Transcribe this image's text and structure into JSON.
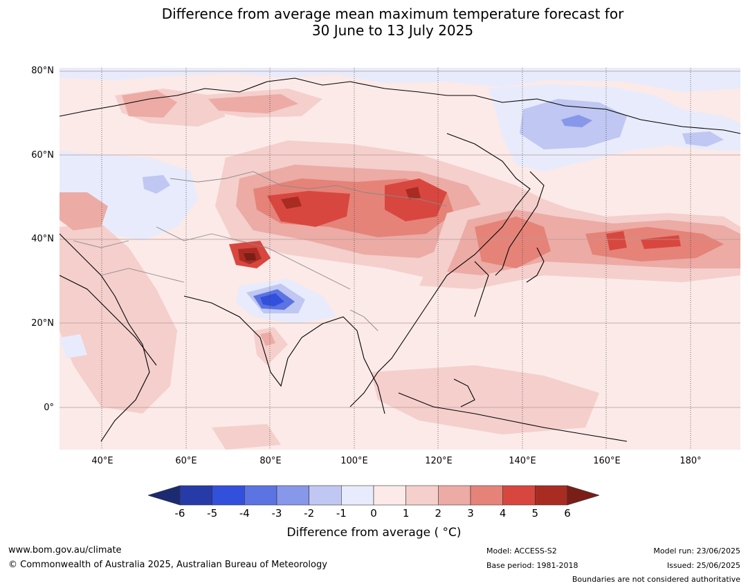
{
  "title": {
    "line1": "Difference from average mean maximum temperature forecast for",
    "line2": "30 June to 13 July 2025"
  },
  "map": {
    "lat_labels": [
      "80°N",
      "60°N",
      "40°N",
      "20°N",
      "0°"
    ],
    "lon_labels": [
      "40°E",
      "60°E",
      "80°E",
      "100°E",
      "120°E",
      "140°E",
      "160°E",
      "180°"
    ],
    "projection_extent": {
      "lon_min": 30,
      "lon_max": 192,
      "lat_min": -10,
      "lat_max": 81
    },
    "grid_lines": "on",
    "boundaries": "country borders in grey, coastlines in black"
  },
  "colorbar": {
    "ticks": [
      "-6",
      "-5",
      "-4",
      "-3",
      "-2",
      "-1",
      "0",
      "1",
      "2",
      "3",
      "4",
      "5",
      "6"
    ],
    "colors": [
      "#1c2a72",
      "#273ba8",
      "#3350dc",
      "#5b74e2",
      "#8797ea",
      "#bfc7f2",
      "#e8ebfb",
      "#fbeae8",
      "#f4cfcc",
      "#ecaba5",
      "#e58379",
      "#d8473f",
      "#a92c23",
      "#7a1e18"
    ],
    "label": "Difference from average ( °C)"
  },
  "footer": {
    "url": "www.bom.gov.au/climate",
    "copyright": "© Commonwealth of Australia 2025, Australian Bureau of Meteorology",
    "model": "Model: ACCESS-S2",
    "base_period": "Base period: 1981-2018",
    "model_run": "Model run: 23/06/2025",
    "issued": "Issued: 25/06/2025",
    "disclaimer": "Boundaries are not considered authoritative"
  }
}
